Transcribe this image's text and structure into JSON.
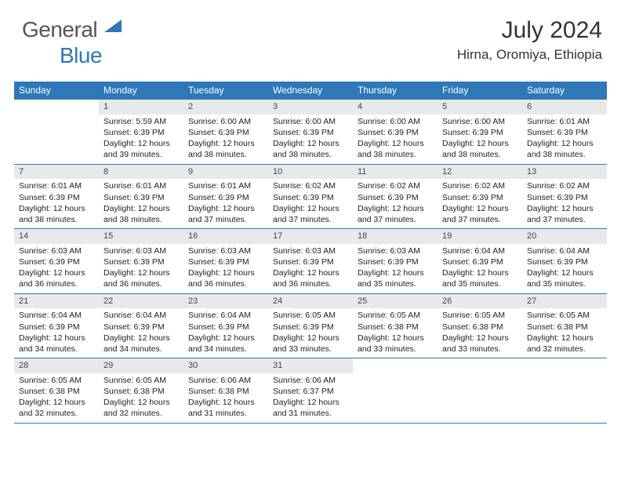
{
  "logo": {
    "part1": "General",
    "part2": "Blue"
  },
  "header": {
    "month": "July 2024",
    "location": "Hirna, Oromiya, Ethiopia"
  },
  "colors": {
    "accent": "#2e78b7",
    "dayHeader": "#e9e9e9",
    "text": "#222222"
  },
  "weekdays": [
    "Sunday",
    "Monday",
    "Tuesday",
    "Wednesday",
    "Thursday",
    "Friday",
    "Saturday"
  ],
  "weeks": [
    [
      null,
      {
        "n": "1",
        "sr": "Sunrise: 5:59 AM",
        "ss": "Sunset: 6:39 PM",
        "d1": "Daylight: 12 hours",
        "d2": "and 39 minutes."
      },
      {
        "n": "2",
        "sr": "Sunrise: 6:00 AM",
        "ss": "Sunset: 6:39 PM",
        "d1": "Daylight: 12 hours",
        "d2": "and 38 minutes."
      },
      {
        "n": "3",
        "sr": "Sunrise: 6:00 AM",
        "ss": "Sunset: 6:39 PM",
        "d1": "Daylight: 12 hours",
        "d2": "and 38 minutes."
      },
      {
        "n": "4",
        "sr": "Sunrise: 6:00 AM",
        "ss": "Sunset: 6:39 PM",
        "d1": "Daylight: 12 hours",
        "d2": "and 38 minutes."
      },
      {
        "n": "5",
        "sr": "Sunrise: 6:00 AM",
        "ss": "Sunset: 6:39 PM",
        "d1": "Daylight: 12 hours",
        "d2": "and 38 minutes."
      },
      {
        "n": "6",
        "sr": "Sunrise: 6:01 AM",
        "ss": "Sunset: 6:39 PM",
        "d1": "Daylight: 12 hours",
        "d2": "and 38 minutes."
      }
    ],
    [
      {
        "n": "7",
        "sr": "Sunrise: 6:01 AM",
        "ss": "Sunset: 6:39 PM",
        "d1": "Daylight: 12 hours",
        "d2": "and 38 minutes."
      },
      {
        "n": "8",
        "sr": "Sunrise: 6:01 AM",
        "ss": "Sunset: 6:39 PM",
        "d1": "Daylight: 12 hours",
        "d2": "and 38 minutes."
      },
      {
        "n": "9",
        "sr": "Sunrise: 6:01 AM",
        "ss": "Sunset: 6:39 PM",
        "d1": "Daylight: 12 hours",
        "d2": "and 37 minutes."
      },
      {
        "n": "10",
        "sr": "Sunrise: 6:02 AM",
        "ss": "Sunset: 6:39 PM",
        "d1": "Daylight: 12 hours",
        "d2": "and 37 minutes."
      },
      {
        "n": "11",
        "sr": "Sunrise: 6:02 AM",
        "ss": "Sunset: 6:39 PM",
        "d1": "Daylight: 12 hours",
        "d2": "and 37 minutes."
      },
      {
        "n": "12",
        "sr": "Sunrise: 6:02 AM",
        "ss": "Sunset: 6:39 PM",
        "d1": "Daylight: 12 hours",
        "d2": "and 37 minutes."
      },
      {
        "n": "13",
        "sr": "Sunrise: 6:02 AM",
        "ss": "Sunset: 6:39 PM",
        "d1": "Daylight: 12 hours",
        "d2": "and 37 minutes."
      }
    ],
    [
      {
        "n": "14",
        "sr": "Sunrise: 6:03 AM",
        "ss": "Sunset: 6:39 PM",
        "d1": "Daylight: 12 hours",
        "d2": "and 36 minutes."
      },
      {
        "n": "15",
        "sr": "Sunrise: 6:03 AM",
        "ss": "Sunset: 6:39 PM",
        "d1": "Daylight: 12 hours",
        "d2": "and 36 minutes."
      },
      {
        "n": "16",
        "sr": "Sunrise: 6:03 AM",
        "ss": "Sunset: 6:39 PM",
        "d1": "Daylight: 12 hours",
        "d2": "and 36 minutes."
      },
      {
        "n": "17",
        "sr": "Sunrise: 6:03 AM",
        "ss": "Sunset: 6:39 PM",
        "d1": "Daylight: 12 hours",
        "d2": "and 36 minutes."
      },
      {
        "n": "18",
        "sr": "Sunrise: 6:03 AM",
        "ss": "Sunset: 6:39 PM",
        "d1": "Daylight: 12 hours",
        "d2": "and 35 minutes."
      },
      {
        "n": "19",
        "sr": "Sunrise: 6:04 AM",
        "ss": "Sunset: 6:39 PM",
        "d1": "Daylight: 12 hours",
        "d2": "and 35 minutes."
      },
      {
        "n": "20",
        "sr": "Sunrise: 6:04 AM",
        "ss": "Sunset: 6:39 PM",
        "d1": "Daylight: 12 hours",
        "d2": "and 35 minutes."
      }
    ],
    [
      {
        "n": "21",
        "sr": "Sunrise: 6:04 AM",
        "ss": "Sunset: 6:39 PM",
        "d1": "Daylight: 12 hours",
        "d2": "and 34 minutes."
      },
      {
        "n": "22",
        "sr": "Sunrise: 6:04 AM",
        "ss": "Sunset: 6:39 PM",
        "d1": "Daylight: 12 hours",
        "d2": "and 34 minutes."
      },
      {
        "n": "23",
        "sr": "Sunrise: 6:04 AM",
        "ss": "Sunset: 6:39 PM",
        "d1": "Daylight: 12 hours",
        "d2": "and 34 minutes."
      },
      {
        "n": "24",
        "sr": "Sunrise: 6:05 AM",
        "ss": "Sunset: 6:39 PM",
        "d1": "Daylight: 12 hours",
        "d2": "and 33 minutes."
      },
      {
        "n": "25",
        "sr": "Sunrise: 6:05 AM",
        "ss": "Sunset: 6:38 PM",
        "d1": "Daylight: 12 hours",
        "d2": "and 33 minutes."
      },
      {
        "n": "26",
        "sr": "Sunrise: 6:05 AM",
        "ss": "Sunset: 6:38 PM",
        "d1": "Daylight: 12 hours",
        "d2": "and 33 minutes."
      },
      {
        "n": "27",
        "sr": "Sunrise: 6:05 AM",
        "ss": "Sunset: 6:38 PM",
        "d1": "Daylight: 12 hours",
        "d2": "and 32 minutes."
      }
    ],
    [
      {
        "n": "28",
        "sr": "Sunrise: 6:05 AM",
        "ss": "Sunset: 6:38 PM",
        "d1": "Daylight: 12 hours",
        "d2": "and 32 minutes."
      },
      {
        "n": "29",
        "sr": "Sunrise: 6:05 AM",
        "ss": "Sunset: 6:38 PM",
        "d1": "Daylight: 12 hours",
        "d2": "and 32 minutes."
      },
      {
        "n": "30",
        "sr": "Sunrise: 6:06 AM",
        "ss": "Sunset: 6:38 PM",
        "d1": "Daylight: 12 hours",
        "d2": "and 31 minutes."
      },
      {
        "n": "31",
        "sr": "Sunrise: 6:06 AM",
        "ss": "Sunset: 6:37 PM",
        "d1": "Daylight: 12 hours",
        "d2": "and 31 minutes."
      },
      null,
      null,
      null
    ]
  ]
}
